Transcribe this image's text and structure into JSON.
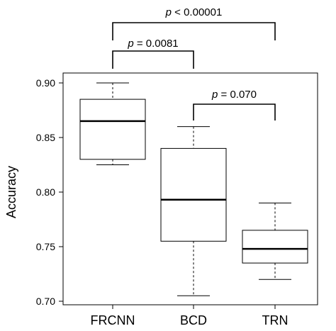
{
  "chart_data": {
    "type": "box",
    "ylabel": "Accuracy",
    "ylim": [
      0.7,
      0.9
    ],
    "yticks": [
      "0.70",
      "0.75",
      "0.80",
      "0.85",
      "0.90"
    ],
    "categories": [
      "FRCNN",
      "BCD",
      "TRN"
    ],
    "boxes": [
      {
        "category": "FRCNN",
        "min": 0.825,
        "q1": 0.83,
        "median": 0.865,
        "q3": 0.885,
        "max": 0.9
      },
      {
        "category": "BCD",
        "min": 0.705,
        "q1": 0.755,
        "median": 0.793,
        "q3": 0.84,
        "max": 0.86
      },
      {
        "category": "TRN",
        "min": 0.72,
        "q1": 0.735,
        "median": 0.748,
        "q3": 0.765,
        "max": 0.79
      }
    ],
    "significance": [
      {
        "from": "FRCNN",
        "to": "TRN",
        "p_symbol": "p",
        "p_text": " < 0.00001"
      },
      {
        "from": "FRCNN",
        "to": "BCD",
        "p_symbol": "p",
        "p_text": " = 0.0081"
      },
      {
        "from": "BCD",
        "to": "TRN",
        "p_symbol": "p",
        "p_text": " = 0.070"
      }
    ]
  }
}
